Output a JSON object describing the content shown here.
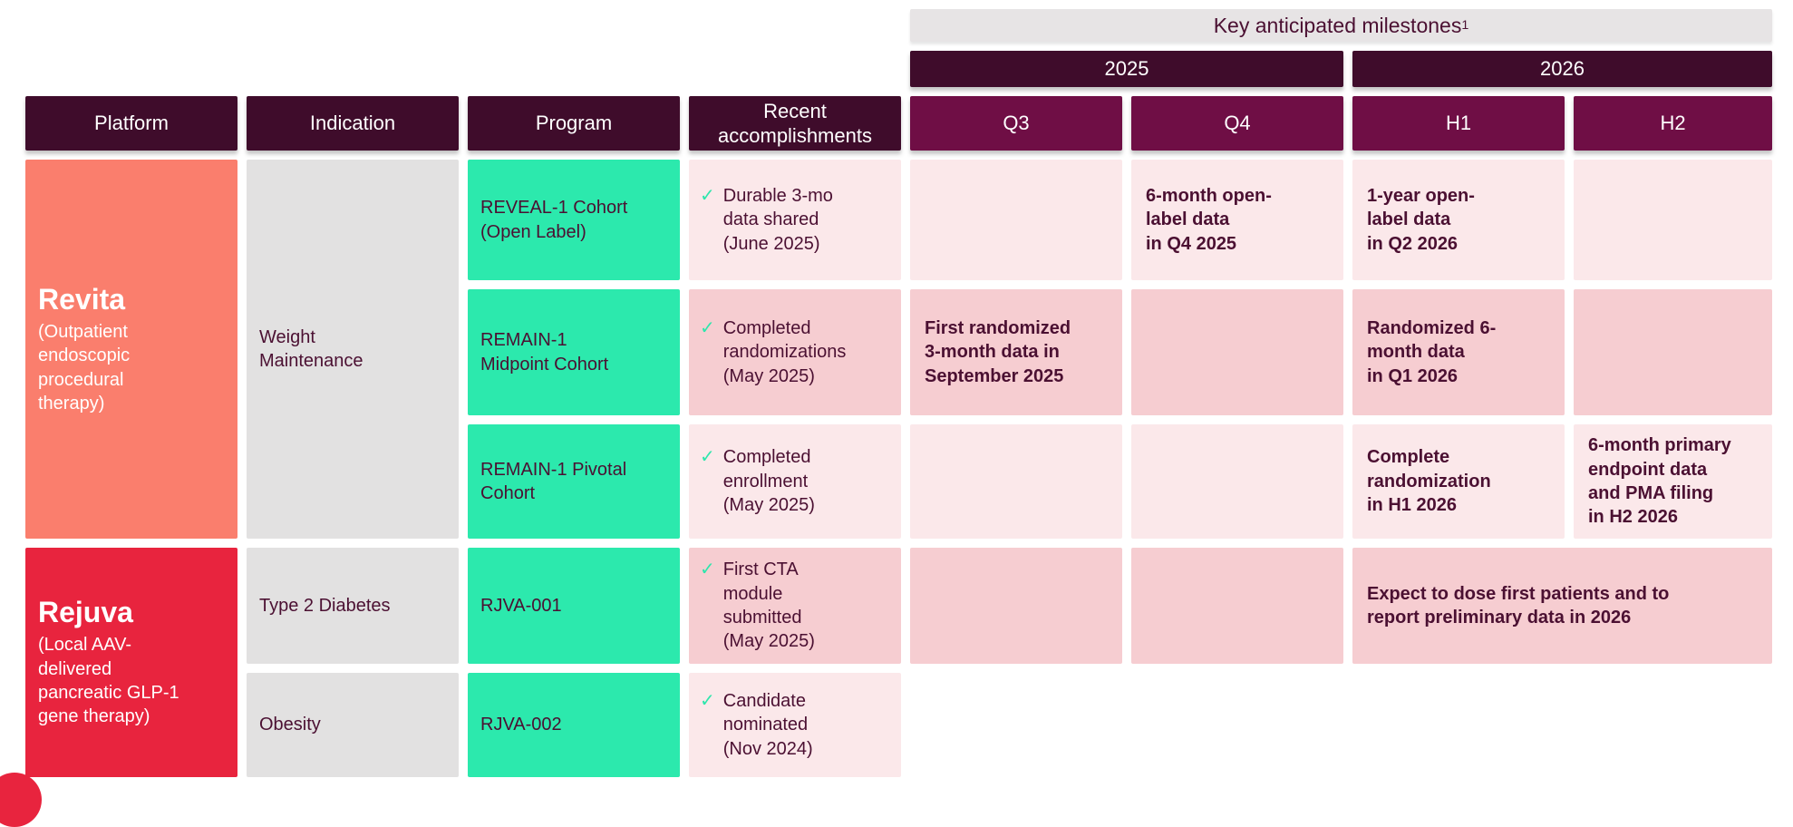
{
  "header": {
    "milestones_title": "Key anticipated milestones",
    "milestones_superscript": "1",
    "year_2025": "2025",
    "year_2026": "2026",
    "columns": {
      "platform": "Platform",
      "indication": "Indication",
      "program": "Program",
      "accomplishments": "Recent\naccomplishments",
      "q3": "Q3",
      "q4": "Q4",
      "h1": "H1",
      "h2": "H2"
    }
  },
  "platforms": {
    "revita": {
      "name": "Revita",
      "subtitle": "(Outpatient\nendoscopic\nprocedural\ntherapy)"
    },
    "rejuva": {
      "name": "Rejuva",
      "subtitle": "(Local AAV-\ndelivered\npancreatic GLP-1\ngene therapy)"
    }
  },
  "indications": {
    "weight_maintenance": "Weight\nMaintenance",
    "type2_diabetes": "Type 2 Diabetes",
    "obesity": "Obesity"
  },
  "rows": {
    "reveal1": {
      "program": "REVEAL-1 Cohort\n(Open Label)",
      "accomplishment": "Durable 3-mo\ndata shared\n(June 2025)",
      "q4_milestone": "6-month open-\nlabel data\nin Q4 2025",
      "h1_milestone": "1-year open-\nlabel data\nin Q2 2026"
    },
    "remain1_midpoint": {
      "program": "REMAIN-1\nMidpoint Cohort",
      "accomplishment": "Completed\nrandomizations\n(May 2025)",
      "q3_milestone": "First randomized\n3-month data in\nSeptember 2025",
      "h1_milestone": "Randomized 6-\nmonth data\nin Q1 2026"
    },
    "remain1_pivotal": {
      "program": "REMAIN-1 Pivotal\nCohort",
      "accomplishment": "Completed\nenrollment\n(May 2025)",
      "h1_milestone": "Complete\nrandomization\nin H1 2026",
      "h2_milestone": "6-month primary\nendpoint data\nand PMA filing\nin H2 2026"
    },
    "rjva001": {
      "program": "RJVA-001",
      "accomplishment": "First CTA\nmodule\nsubmitted\n(May 2025)",
      "h1_h2_milestone": "Expect to dose first patients and to\nreport preliminary data in 2026"
    },
    "rjva002": {
      "program": "RJVA-002",
      "accomplishment": "Candidate\nnominated\n(Nov 2024)"
    }
  },
  "icons": {
    "check": "✓"
  },
  "colors": {
    "header_dark_plum": "#3f0c2b",
    "header_magenta": "#6f0e45",
    "milestones_band_gray": "#e7e4e5",
    "platform_revita_salmon": "#fa7e6d",
    "platform_rejuva_red": "#e8243e",
    "program_teal": "#2ce9ad",
    "indication_gray": "#e2e1e1",
    "row_pink_light": "#fbe8ea",
    "row_pink_dark": "#f6cdd1",
    "text_maroon": "#4b1032",
    "check_green": "#2ee6ac"
  }
}
